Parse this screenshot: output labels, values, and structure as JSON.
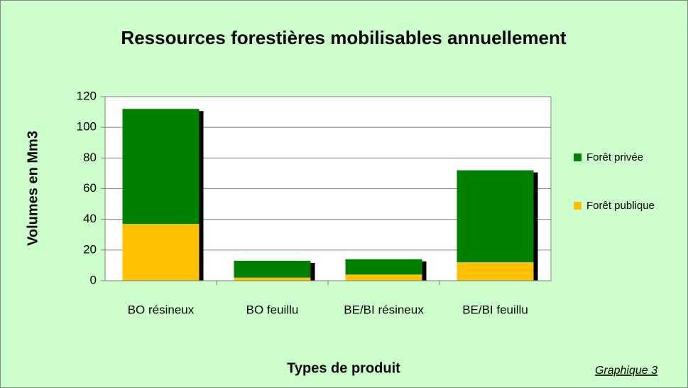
{
  "chart_data": {
    "type": "stacked_bar",
    "title": "Ressources forestières mobilisables annuellement",
    "x_label": "Types de produit",
    "y_label": "Volumes en Mm3",
    "annotation": "Graphique 3",
    "categories": [
      "BO résineux",
      "BO feuillu",
      "BE/BI résineux",
      "BE/BI feuillu"
    ],
    "series": [
      {
        "name": "Forêt publique",
        "color": "#ffc000",
        "values": [
          37,
          2,
          4,
          12
        ]
      },
      {
        "name": "Forêt privée",
        "color": "#008000",
        "values": [
          75,
          11,
          10,
          60
        ]
      }
    ],
    "ylim": [
      0,
      120
    ],
    "yticks": [
      0,
      20,
      40,
      60,
      80,
      100,
      120
    ],
    "grid": true,
    "legend": "right"
  }
}
